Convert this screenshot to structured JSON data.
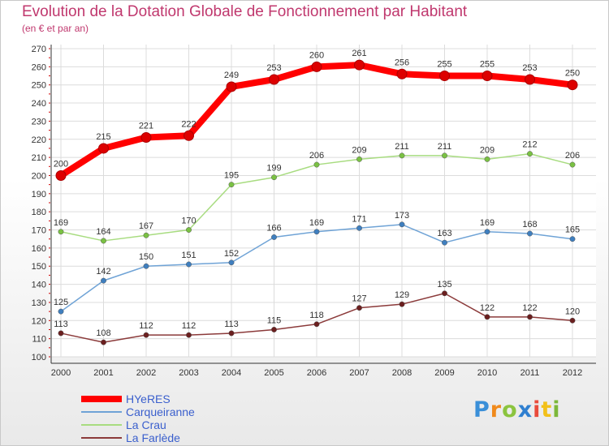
{
  "chart_data": {
    "type": "line",
    "title": "Evolution de la Dotation Globale de Fonctionnement par Habitant",
    "subtitle": "(en € et par an)",
    "xlabel": "",
    "ylabel": "",
    "categories": [
      "2000",
      "2001",
      "2002",
      "2003",
      "2004",
      "2005",
      "2006",
      "2007",
      "2008",
      "2009",
      "2010",
      "2011",
      "2012"
    ],
    "ylim": [
      100,
      270
    ],
    "yticks": [
      100,
      110,
      120,
      130,
      140,
      150,
      160,
      170,
      180,
      190,
      200,
      210,
      220,
      230,
      240,
      250,
      260,
      270
    ],
    "grid": true,
    "legend_position": "bottom-left",
    "series": [
      {
        "name": "HYeRES",
        "color": "#ff0000",
        "marker_color": "#cc0000",
        "emphasis": true,
        "values": [
          200,
          215,
          221,
          222,
          249,
          253,
          260,
          261,
          256,
          255,
          255,
          253,
          250
        ]
      },
      {
        "name": "Carqueiranne",
        "color": "#6fa3d6",
        "marker_color": "#3f7fbf",
        "emphasis": false,
        "values": [
          125,
          142,
          150,
          151,
          152,
          166,
          169,
          171,
          173,
          163,
          169,
          168,
          165
        ]
      },
      {
        "name": "La Crau",
        "color": "#a8dc80",
        "marker_color": "#7ac143",
        "emphasis": false,
        "values": [
          169,
          164,
          167,
          170,
          195,
          199,
          206,
          209,
          211,
          211,
          209,
          212,
          206
        ]
      },
      {
        "name": "La Farlède",
        "color": "#8b3a3a",
        "marker_color": "#6b1f1f",
        "emphasis": false,
        "values": [
          113,
          108,
          112,
          112,
          113,
          115,
          118,
          127,
          129,
          135,
          122,
          122,
          120
        ]
      }
    ]
  },
  "logo": {
    "p": "P",
    "r": "r",
    "o": "o",
    "x": "x",
    "i": "i",
    "t": "t",
    "i2": "i"
  }
}
